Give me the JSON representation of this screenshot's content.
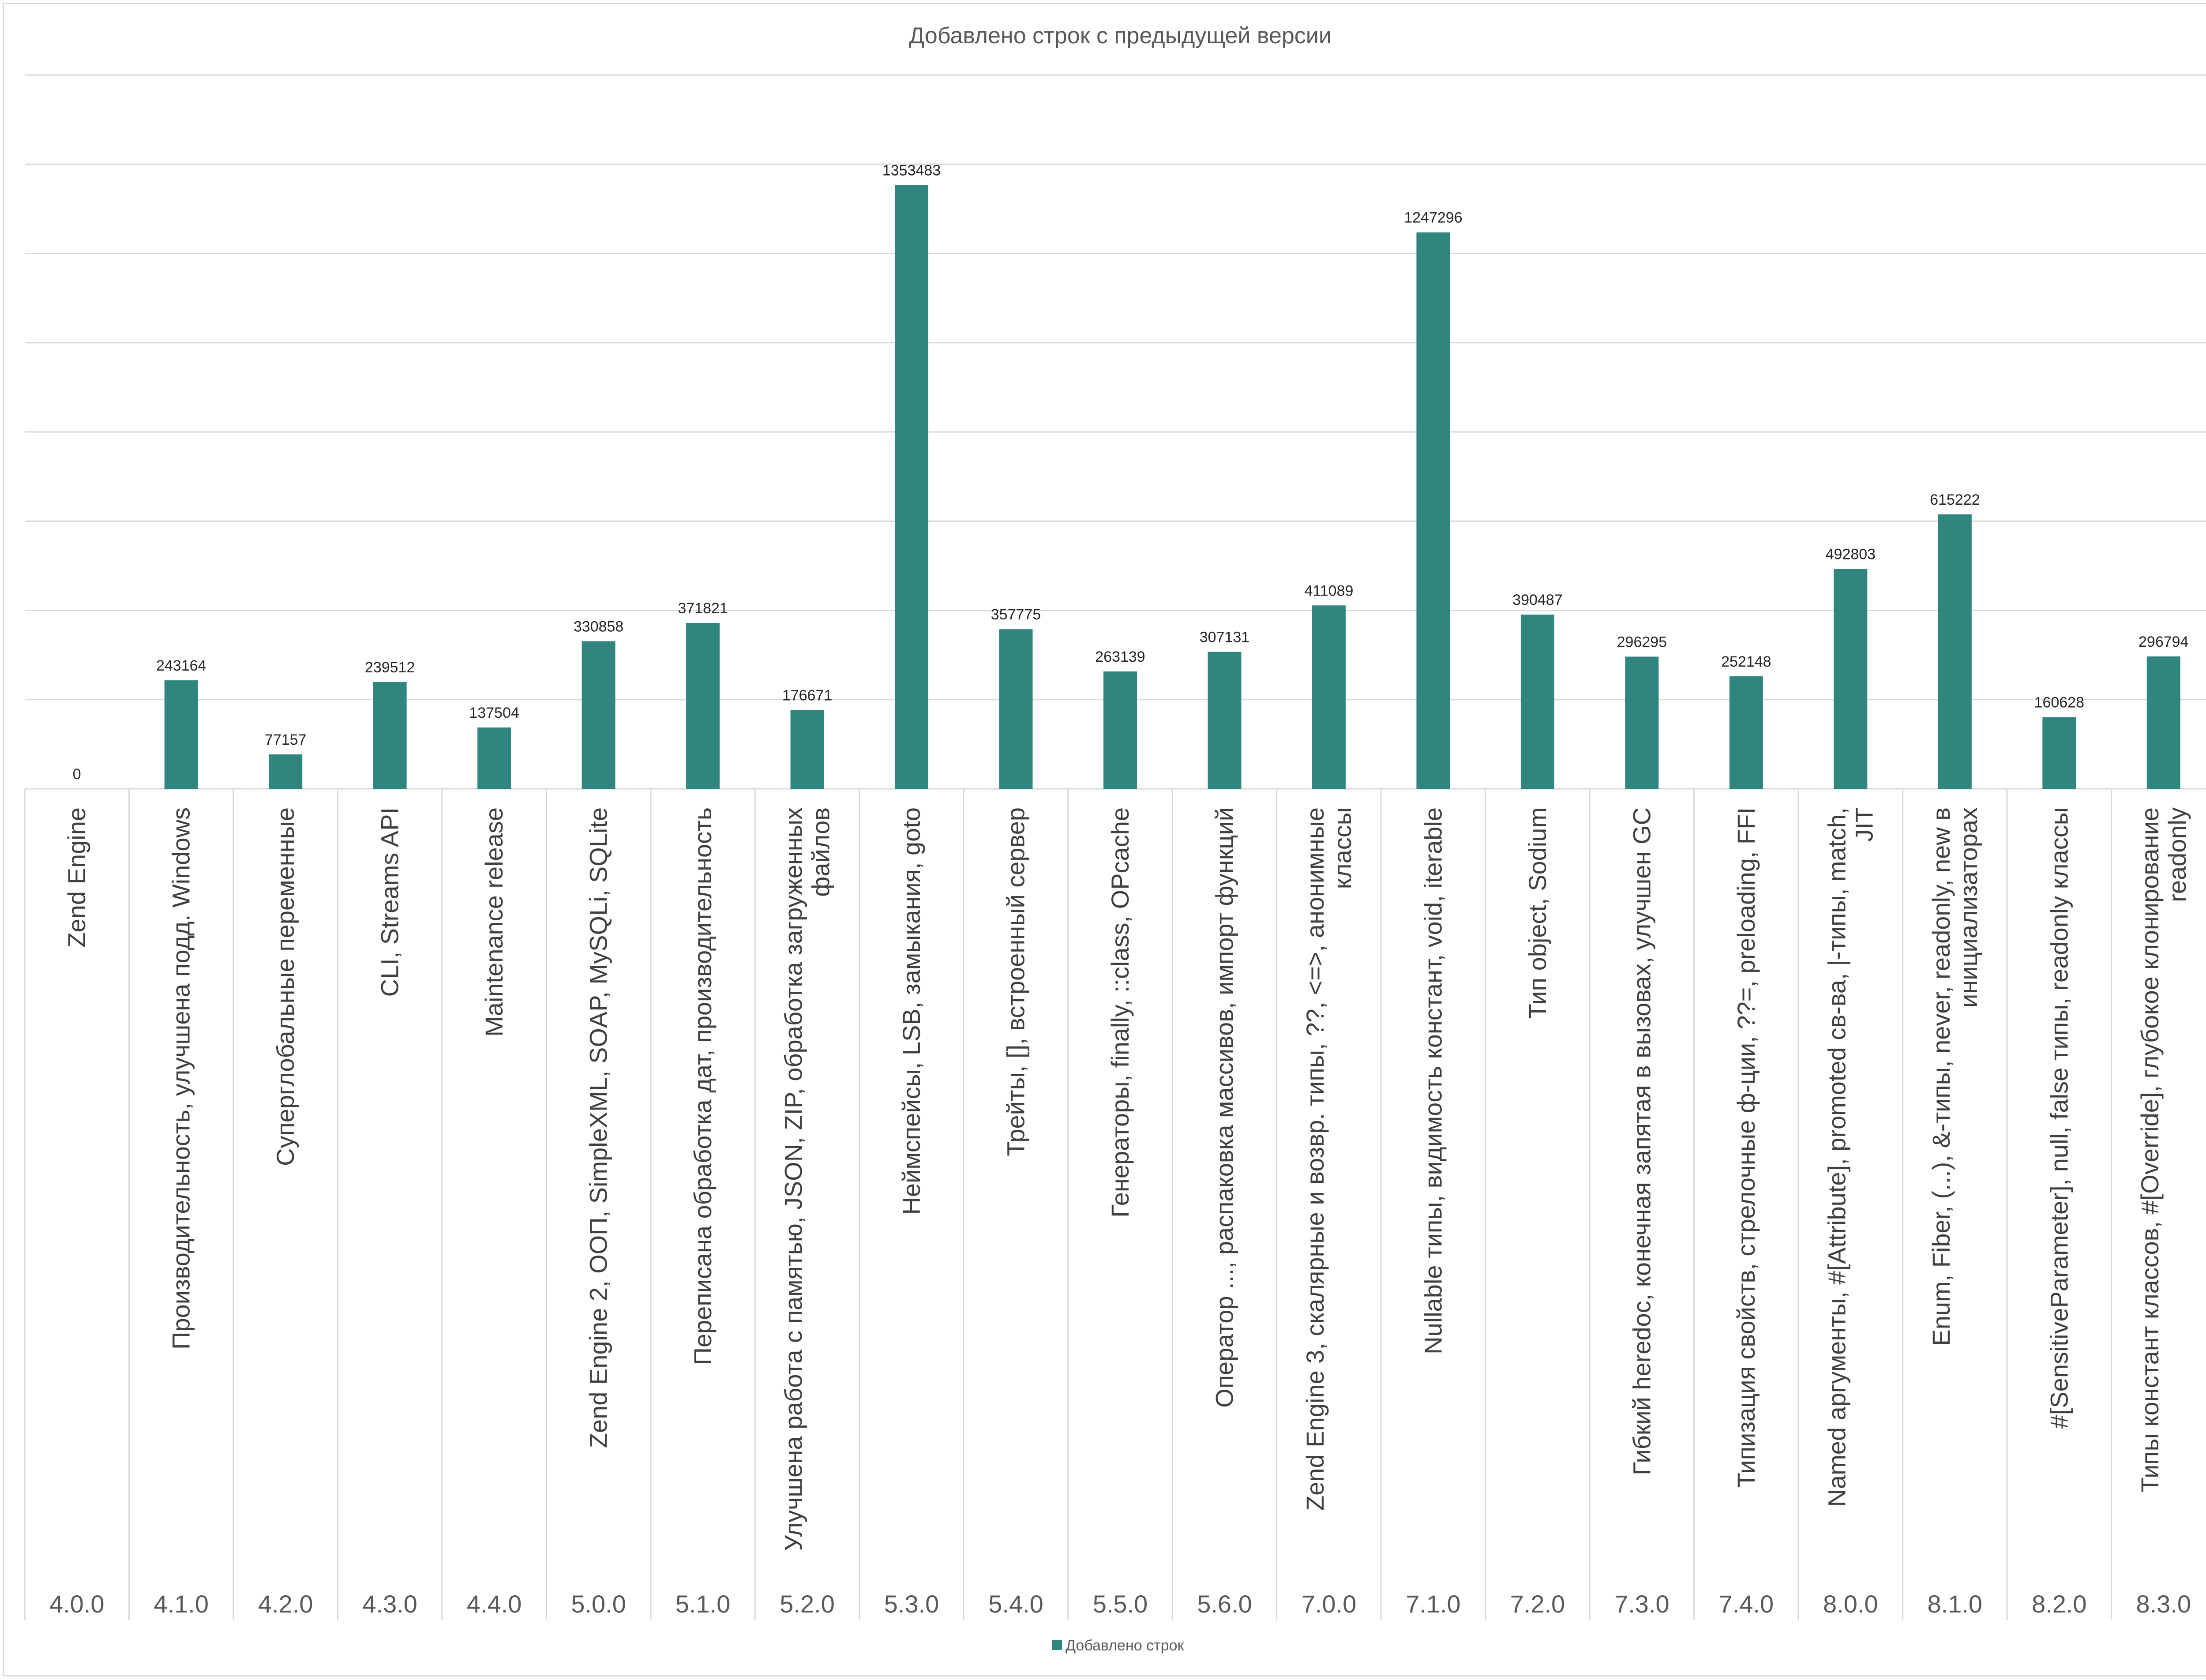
{
  "chart_data": {
    "type": "bar",
    "title": "Добавлено строк с предыдущей версии",
    "xlabel": "",
    "ylabel": "",
    "ylim": [
      0,
      1600000
    ],
    "grid": true,
    "legend_position": "bottom",
    "color": "#31857f",
    "categories": [
      {
        "version": "4.0.0",
        "description": [
          "Zend Engine"
        ]
      },
      {
        "version": "4.1.0",
        "description": [
          "Производительность, улучшена подд. Windows"
        ]
      },
      {
        "version": "4.2.0",
        "description": [
          "Суперглобальные переменные"
        ]
      },
      {
        "version": "4.3.0",
        "description": [
          "CLI, Streams API"
        ]
      },
      {
        "version": "4.4.0",
        "description": [
          "Maintenance release"
        ]
      },
      {
        "version": "5.0.0",
        "description": [
          "Zend Engine 2, ООП, SimpleXML, SOAP, MySQLi, SQLite"
        ]
      },
      {
        "version": "5.1.0",
        "description": [
          "Переписана обработка дат, производительность"
        ]
      },
      {
        "version": "5.2.0",
        "description": [
          "Улучшена работа с памятью, JSON, ZIP, обработка загруженных",
          "файлов"
        ]
      },
      {
        "version": "5.3.0",
        "description": [
          "Неймспейсы, LSB, замыкания, goto"
        ]
      },
      {
        "version": "5.4.0",
        "description": [
          "Трейты, [], встроенный сервер"
        ]
      },
      {
        "version": "5.5.0",
        "description": [
          "Генераторы, finally, ::class, OPcache"
        ]
      },
      {
        "version": "5.6.0",
        "description": [
          "Оператор ..., распаковка массивов, импорт функций"
        ]
      },
      {
        "version": "7.0.0",
        "description": [
          "Zend Engine 3, скалярные и возвр. типы, ??, <=>, анонимные",
          "классы"
        ]
      },
      {
        "version": "7.1.0",
        "description": [
          "Nullable типы, видимость констант, void, iterable"
        ]
      },
      {
        "version": "7.2.0",
        "description": [
          "Тип object, Sodium"
        ]
      },
      {
        "version": "7.3.0",
        "description": [
          "Гибкий heredoc, конечная запятая в вызовах, улучшен GC"
        ]
      },
      {
        "version": "7.4.0",
        "description": [
          "Типизация свойств, стрелочные ф-ции, ??=, preloading, FFI"
        ]
      },
      {
        "version": "8.0.0",
        "description": [
          "Named аргументы, #[Attribute], promoted св-ва, |-типы, match,",
          "JIT"
        ]
      },
      {
        "version": "8.1.0",
        "description": [
          "Enum, Fiber, (...), &-типы, never, readonly, new в",
          "инициализаторах"
        ]
      },
      {
        "version": "8.2.0",
        "description": [
          "#[SensitiveParameter], null, false типы, readonly классы"
        ]
      },
      {
        "version": "8.3.0",
        "description": [
          "Типы констант классов, #[Override], глубокое клонирование",
          "readonly"
        ]
      }
    ],
    "series": [
      {
        "name": "Добавлено строк",
        "values": [
          0,
          243164,
          77157,
          239512,
          137504,
          330858,
          371821,
          176671,
          1353483,
          357775,
          263139,
          307131,
          411089,
          1247296,
          390487,
          296295,
          252148,
          492803,
          615222,
          160628,
          296794
        ]
      }
    ]
  }
}
